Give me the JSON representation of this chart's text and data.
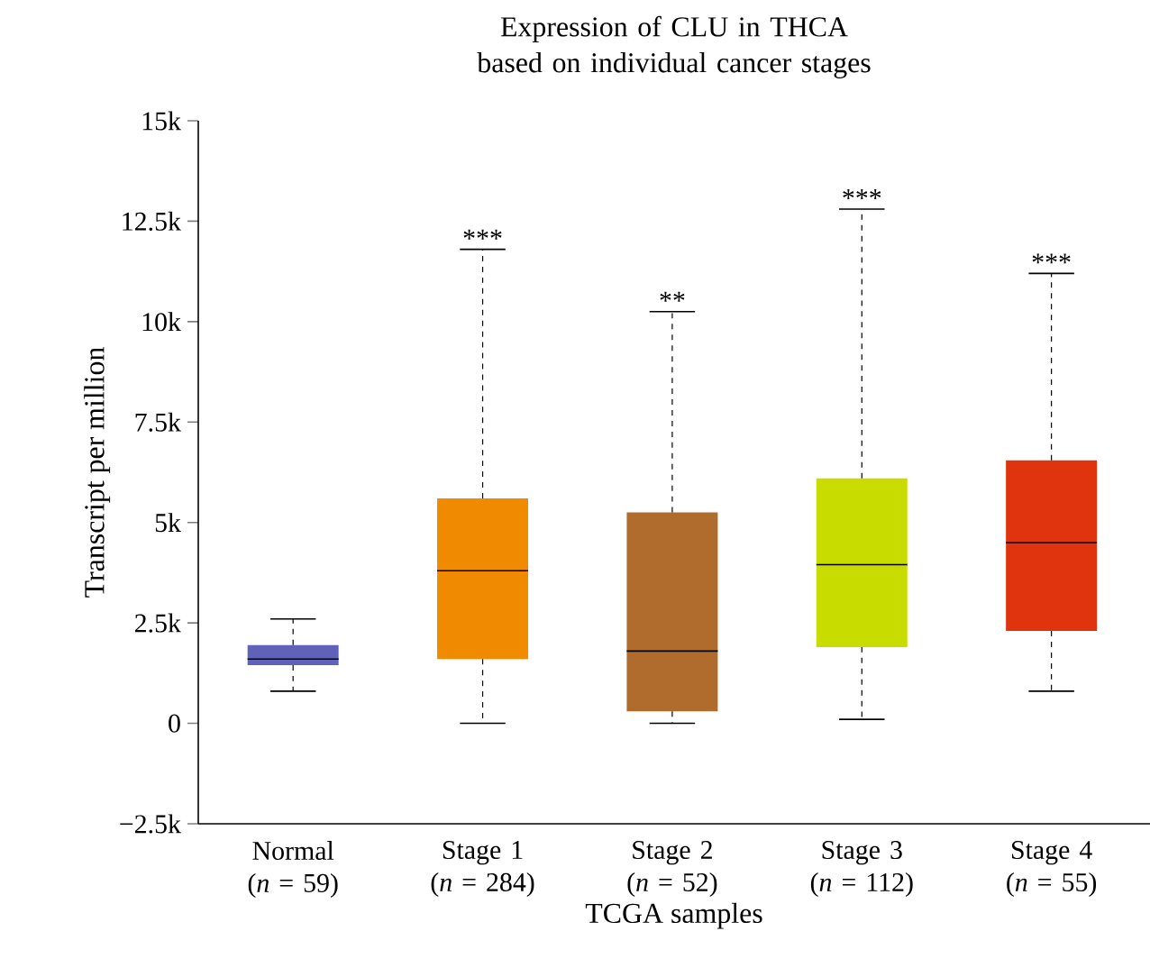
{
  "chart_data": {
    "type": "box",
    "title": "Expression of CLU in THCA based on individual cancer stages",
    "xlabel": "TCGA samples",
    "ylabel": "Transcript per million",
    "categories": [
      "Normal (*n* = 59)",
      "Stage 1 (*n* = 284)",
      "Stage 2 (*n* = 52)",
      "Stage 3 (*n* = 112)",
      "Stage 4 (*n* = 55)"
    ],
    "colors": [
      "#5f62b8",
      "#f08a00",
      "#b06c2c",
      "#c8dc00",
      "#e0340f"
    ],
    "boxes": [
      {
        "low": 800,
        "q1": 1450,
        "median": 1600,
        "q3": 1950,
        "high": 2600
      },
      {
        "low": 0,
        "q1": 1600,
        "median": 3800,
        "q3": 5600,
        "high": 11800
      },
      {
        "low": 0,
        "q1": 300,
        "median": 1800,
        "q3": 5250,
        "high": 10250
      },
      {
        "low": 100,
        "q1": 1900,
        "median": 3950,
        "q3": 6100,
        "high": 12800
      },
      {
        "low": 800,
        "q1": 2300,
        "median": 4500,
        "q3": 6550,
        "high": 11200
      }
    ],
    "ylim": [
      -2500,
      15000
    ],
    "yticks": [
      {
        "value": -2500,
        "label": "−2.5k"
      },
      0,
      {
        "value": 2500,
        "label": "2.5k"
      },
      {
        "value": 5000,
        "label": "5k"
      },
      {
        "value": 7500,
        "label": "7.5k"
      },
      {
        "value": 10000,
        "label": "10k"
      },
      {
        "value": 12500,
        "label": "12.5k"
      },
      {
        "value": 15000,
        "label": "15k"
      }
    ],
    "annotations": [
      {
        "text": "***",
        "x": "Stage 1 (*n* = 284)",
        "y": 11800
      },
      {
        "text": "**",
        "x": "Stage 2 (*n* = 52)",
        "y": 10250
      },
      {
        "text": "***",
        "x": "Stage 3 (*n* = 112)",
        "y": 12800
      },
      {
        "text": "***",
        "x": "Stage 4 (*n* = 55)",
        "y": 11200
      }
    ],
    "grid": false
  }
}
